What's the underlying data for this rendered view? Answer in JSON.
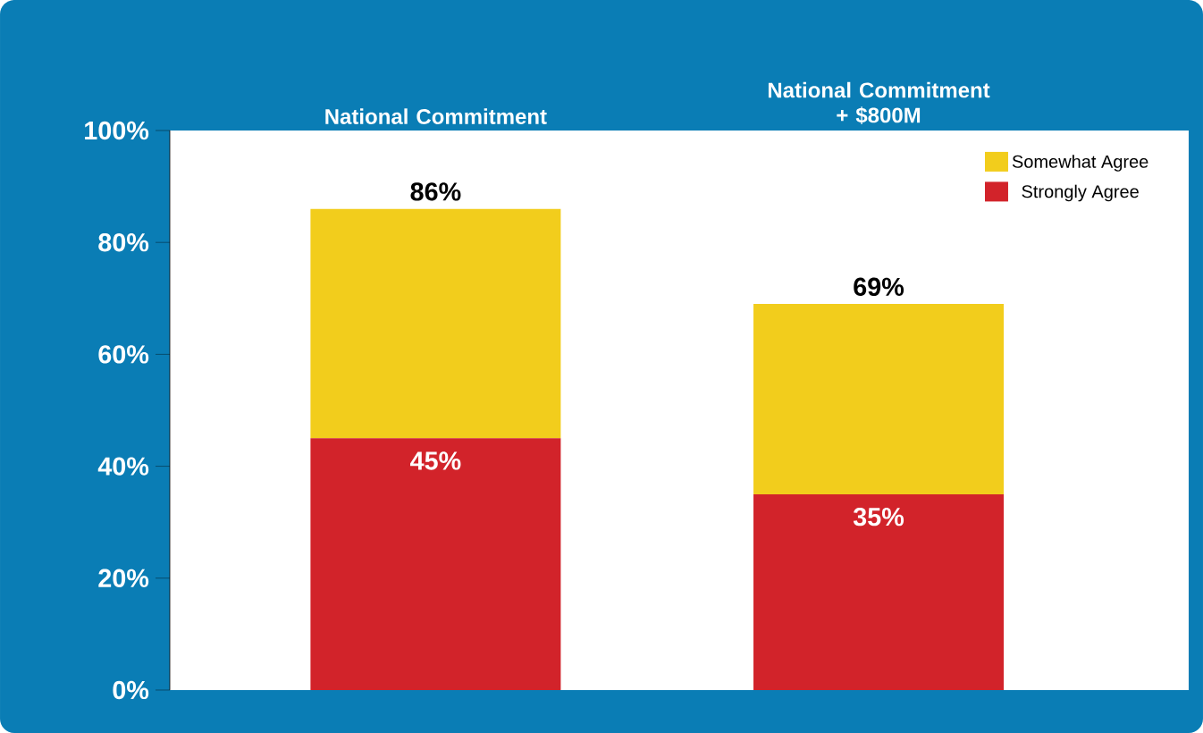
{
  "chart_data": {
    "type": "bar",
    "stacked": true,
    "categories": [
      "National Commitment",
      "National Commitment + $800M"
    ],
    "series": [
      {
        "name": "Strongly Agree",
        "color": "#d2232a",
        "values": [
          45,
          35
        ],
        "value_labels": [
          "45%",
          "35%"
        ]
      },
      {
        "name": "Somewhat Agree",
        "color": "#f2cd1c",
        "values": [
          41,
          34
        ]
      }
    ],
    "totals": [
      "86%",
      "69%"
    ],
    "ylim": [
      0,
      100
    ],
    "yticks": [
      {
        "value": 0,
        "label": "0%"
      },
      {
        "value": 20,
        "label": "20%"
      },
      {
        "value": 40,
        "label": "40%"
      },
      {
        "value": 60,
        "label": "60%"
      },
      {
        "value": 80,
        "label": "80%"
      },
      {
        "value": 100,
        "label": "100%"
      }
    ],
    "legend": "top right"
  }
}
